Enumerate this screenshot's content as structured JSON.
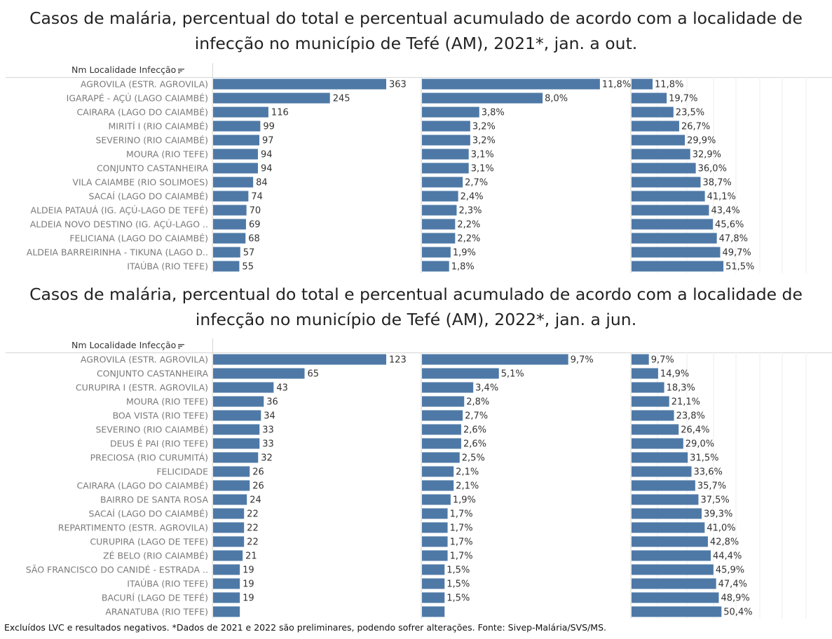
{
  "footer": "Excluídos LVC e resultados negativos. *Dados de 2021 e 2022 são preliminares, podendo sofrer alterações. Fonte: Sivep-Malária/SVS/MS.",
  "colors": {
    "bar": "#4e79a7",
    "label": "#7a7a7a",
    "value": "#333333",
    "grid": "#ececec",
    "divider": "#d6d6d6"
  },
  "icons": {
    "sort": "sort-descending-icon"
  },
  "chart_data": [
    {
      "type": "bar",
      "title_line1": "Casos de malária, percentual do total e percentual acumulado de acordo com a localidade de",
      "title_line2": "infecção no município de Tefé (AM), 2021*, jan. a out.",
      "column_header": "Nm Localidade Infecção",
      "categories": [
        "AGROVILA (ESTR. AGROVILA)",
        "IGARAPÉ - AÇÚ (LAGO CAIAMBÉ)",
        "CAIRARA (LAGO DO CAIAMBÉ)",
        "MIRITÍ I (RIO CAIAMBÉ)",
        "SEVERINO (RIO CAIAMBÉ)",
        "MOURA (RIO TEFE)",
        "CONJUNTO CASTANHEIRA",
        "VILA CAIAMBE (RIO SOLIMOES)",
        "SACAÍ (LAGO DO CAIAMBÉ)",
        "ALDEIA PATAUÁ (IG. AÇÚ-LAGO DE TEFÉ)",
        "ALDEIA NOVO DESTINO (IG. AÇÚ-LAGO ..",
        "FELICIANA (LAGO DO CAIAMBÉ)",
        "ALDEIA BARREIRINHA - TIKUNA (LAGO D..",
        "ITAÚBA (RIO TEFE)"
      ],
      "cases": [
        363,
        245,
        116,
        99,
        97,
        94,
        94,
        84,
        74,
        70,
        69,
        68,
        57,
        55
      ],
      "cases_labels": [
        "363",
        "245",
        "116",
        "99",
        "97",
        "94",
        "94",
        "84",
        "74",
        "70",
        "69",
        "68",
        "57",
        "55"
      ],
      "percent": [
        11.8,
        8.0,
        3.8,
        3.2,
        3.2,
        3.1,
        3.1,
        2.7,
        2.4,
        2.3,
        2.2,
        2.2,
        1.9,
        1.8
      ],
      "percent_labels": [
        "11,8%",
        "8,0%",
        "3,8%",
        "3,2%",
        "3,2%",
        "3,1%",
        "3,1%",
        "2,7%",
        "2,4%",
        "2,3%",
        "2,2%",
        "2,2%",
        "1,9%",
        "1,8%"
      ],
      "cumulative": [
        11.8,
        19.7,
        23.5,
        26.7,
        29.9,
        32.9,
        36.0,
        38.7,
        41.1,
        43.4,
        45.6,
        47.8,
        49.7,
        51.5
      ],
      "cumulative_labels": [
        "11,8%",
        "19,7%",
        "23,5%",
        "26,7%",
        "29,9%",
        "32,9%",
        "36,0%",
        "38,7%",
        "41,1%",
        "43,4%",
        "45,6%",
        "47,8%",
        "49,7%",
        "51,5%"
      ]
    },
    {
      "type": "bar",
      "title_line1": "Casos de malária, percentual do total e percentual acumulado de acordo com a localidade de",
      "title_line2": "infecção no município de Tefé (AM), 2022*, jan. a jun.",
      "column_header": "Nm Localidade Infecção",
      "categories": [
        "AGROVILA (ESTR. AGROVILA)",
        "CONJUNTO CASTANHEIRA",
        "CURUPIRA I (ESTR. AGROVILA)",
        "MOURA (RIO TEFE)",
        "BOA VISTA (RIO TEFE)",
        "SEVERINO (RIO CAIAMBÉ)",
        "DEUS É PAI (RIO TEFE)",
        "PRECIOSA (RIO CURUMITÁ)",
        "FELICIDADE",
        "CAIRARA (LAGO DO CAIAMBÉ)",
        "BAIRRO DE SANTA ROSA",
        "SACAÍ (LAGO DO CAIAMBÉ)",
        "REPARTIMENTO (ESTR. AGROVILA)",
        "CURUPIRA (LAGO DE TEFE)",
        "ZÉ BELO (RIO CAIAMBÉ)",
        "SÃO FRANCISCO DO CANIDÉ - ESTRADA ..",
        "ITAÚBA (RIO TEFE)",
        "BACURÍ (LAGO DE TEFÉ)",
        "ARANATUBA (RIO TEFE)"
      ],
      "cases": [
        123,
        65,
        43,
        36,
        34,
        33,
        33,
        32,
        26,
        26,
        24,
        22,
        22,
        22,
        21,
        19,
        19,
        19,
        19
      ],
      "cases_labels": [
        "123",
        "65",
        "43",
        "36",
        "34",
        "33",
        "33",
        "32",
        "26",
        "26",
        "24",
        "22",
        "22",
        "22",
        "21",
        "19",
        "19",
        "19",
        ""
      ],
      "percent": [
        9.7,
        5.1,
        3.4,
        2.8,
        2.7,
        2.6,
        2.6,
        2.5,
        2.1,
        2.1,
        1.9,
        1.7,
        1.7,
        1.7,
        1.7,
        1.5,
        1.5,
        1.5,
        1.5
      ],
      "percent_labels": [
        "9,7%",
        "5,1%",
        "3,4%",
        "2,8%",
        "2,7%",
        "2,6%",
        "2,6%",
        "2,5%",
        "2,1%",
        "2,1%",
        "1,9%",
        "1,7%",
        "1,7%",
        "1,7%",
        "1,7%",
        "1,5%",
        "1,5%",
        "1,5%",
        ""
      ],
      "cumulative": [
        9.7,
        14.9,
        18.3,
        21.1,
        23.8,
        26.4,
        29.0,
        31.5,
        33.6,
        35.7,
        37.5,
        39.3,
        41.0,
        42.8,
        44.4,
        45.9,
        47.4,
        48.9,
        50.4
      ],
      "cumulative_labels": [
        "9,7%",
        "14,9%",
        "18,3%",
        "21,1%",
        "23,8%",
        "26,4%",
        "29,0%",
        "31,5%",
        "33,6%",
        "35,7%",
        "37,5%",
        "39,3%",
        "41,0%",
        "42,8%",
        "44,4%",
        "45,9%",
        "47,4%",
        "48,9%",
        "50,4%"
      ]
    }
  ]
}
